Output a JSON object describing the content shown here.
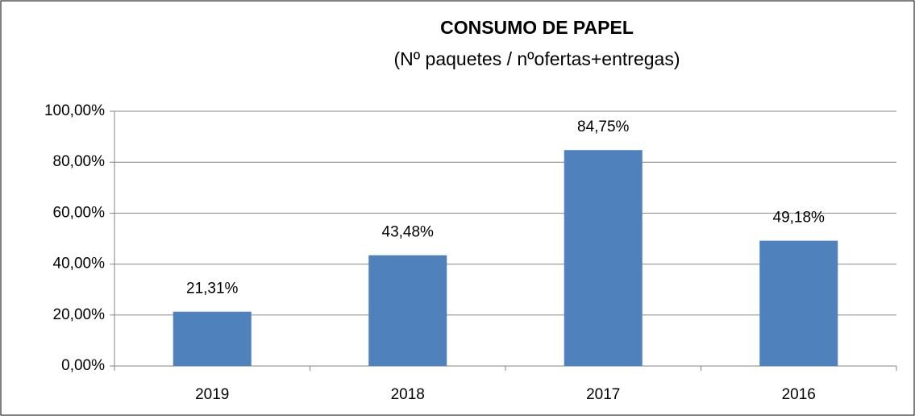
{
  "chart_data": {
    "type": "bar",
    "title": "CONSUMO DE PAPEL",
    "subtitle": "(Nº paquetes / nºofertas+entregas)",
    "categories": [
      "2019",
      "2018",
      "2017",
      "2016"
    ],
    "values": [
      21.31,
      43.48,
      84.75,
      49.18
    ],
    "value_labels": [
      "21,31%",
      "43,48%",
      "84,75%",
      "49,18%"
    ],
    "color": "#4f81bd",
    "ylim": [
      0,
      100
    ],
    "yticks": [
      {
        "value": 0,
        "label": "0,00%"
      },
      {
        "value": 20,
        "label": "20,00%"
      },
      {
        "value": 40,
        "label": "40,00%"
      },
      {
        "value": 60,
        "label": "60,00%"
      },
      {
        "value": 80,
        "label": "80,00%"
      },
      {
        "value": 100,
        "label": "100,00%"
      }
    ],
    "grid": true
  }
}
